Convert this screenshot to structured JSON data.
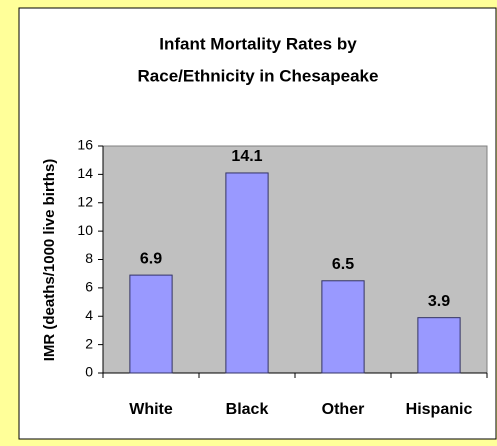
{
  "chart_data": {
    "type": "bar",
    "title": [
      "Infant Mortality Rates by",
      "Race/Ethnicity in Chesapeake"
    ],
    "y_label": "IMR (deaths/1000 live births)",
    "categories": [
      "White",
      "Black",
      "Other",
      "Hispanic"
    ],
    "values": [
      6.9,
      14.1,
      6.5,
      3.9
    ],
    "color": "#9999ff",
    "ylim": [
      0,
      16
    ],
    "yticks": [
      0,
      2,
      4,
      6,
      8,
      10,
      12,
      14,
      16
    ],
    "grid": false
  }
}
